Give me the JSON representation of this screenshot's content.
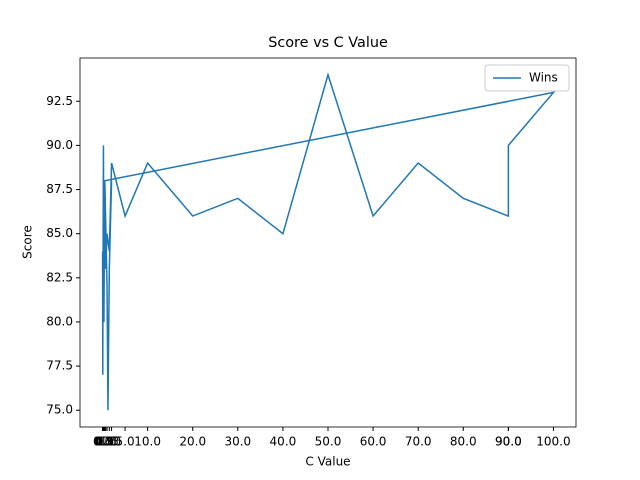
{
  "chart_data": {
    "type": "line",
    "title": "Score vs C Value",
    "x_label": "C Value",
    "y_label": "Score",
    "x": [
      0.01,
      0.05,
      0.1,
      0.2,
      0.3,
      0.5,
      0.7,
      1.0,
      1.5,
      2.0,
      5.0,
      10,
      20,
      30,
      40,
      50,
      60,
      70,
      80,
      90,
      90,
      100,
      0.5,
      1.0,
      1.2,
      1.5,
      2.0
    ],
    "series": [
      {
        "name": "Wins",
        "color": "#1f77b4",
        "values": [
          84,
          77,
          82,
          90,
          80,
          88,
          83,
          85,
          84,
          89,
          86,
          89,
          86,
          87,
          85,
          94,
          86,
          89,
          87,
          86,
          90,
          93,
          88,
          82,
          75,
          83,
          88
        ]
      }
    ],
    "xlim": [
      -5,
      105
    ],
    "ylim": [
      74.05,
      94.95
    ],
    "xticks": [
      {
        "value": 0.01,
        "label": "0.0"
      },
      {
        "value": 0.05,
        "label": "0.1"
      },
      0.1,
      0.2,
      0.3,
      0.5,
      0.7,
      {
        "value": 1.0,
        "label": "1.0"
      },
      1.5,
      {
        "value": 2.0,
        "label": "2.0"
      },
      {
        "value": 5.0,
        "label": "5.0"
      },
      {
        "value": 10,
        "label": "10.0"
      },
      {
        "value": 20,
        "label": "20.0"
      },
      {
        "value": 30,
        "label": "30.0"
      },
      {
        "value": 40,
        "label": "40.0"
      },
      {
        "value": 50,
        "label": "50.0"
      },
      {
        "value": 60,
        "label": "60.0"
      },
      {
        "value": 70,
        "label": "70.0"
      },
      {
        "value": 80,
        "label": "80.0"
      },
      {
        "value": 90,
        "label": "90.0"
      },
      {
        "value": 90,
        "label": "90.0"
      },
      {
        "value": 100,
        "label": "100.0"
      }
    ],
    "yticks": [
      {
        "value": 75,
        "label": "75.0"
      },
      {
        "value": 77.5,
        "label": "77.5"
      },
      {
        "value": 80,
        "label": "80.0"
      },
      {
        "value": 82.5,
        "label": "82.5"
      },
      {
        "value": 85,
        "label": "85.0"
      },
      {
        "value": 87.5,
        "label": "87.5"
      },
      {
        "value": 90,
        "label": "90.0"
      },
      {
        "value": 92.5,
        "label": "92.5"
      }
    ],
    "legend": "upper right"
  }
}
